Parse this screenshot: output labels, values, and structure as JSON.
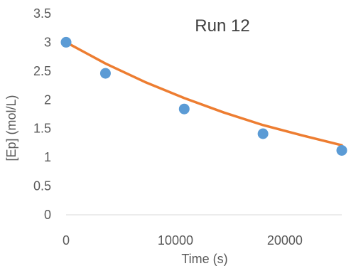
{
  "chart_data": {
    "type": "scatter",
    "title": "Run 12",
    "xlabel": "Time (s)",
    "ylabel": "[Ep] (mol/L)",
    "xlim": [
      0,
      25200
    ],
    "ylim": [
      0,
      3.5
    ],
    "xticks": [
      0,
      10000,
      20000
    ],
    "xtick_labels": [
      "0",
      "10000",
      "20000"
    ],
    "yticks": [
      0,
      0.5,
      1,
      1.5,
      2,
      2.5,
      3,
      3.5
    ],
    "ytick_labels": [
      "0",
      "0.5",
      "1",
      "1.5",
      "2",
      "2.5",
      "3",
      "3.5"
    ],
    "grid": false,
    "legend": "none",
    "series": [
      {
        "kind": "points",
        "color": "#5B9BD5",
        "x": [
          0,
          3600,
          10800,
          18000,
          25200
        ],
        "y": [
          3.0,
          2.46,
          1.84,
          1.41,
          1.12
        ]
      },
      {
        "kind": "line",
        "color": "#ED7D31",
        "x": [
          0,
          3600,
          7200,
          10800,
          14400,
          18000,
          21600,
          25200
        ],
        "y": [
          3.0,
          2.63,
          2.31,
          2.03,
          1.78,
          1.56,
          1.38,
          1.21
        ]
      }
    ]
  }
}
